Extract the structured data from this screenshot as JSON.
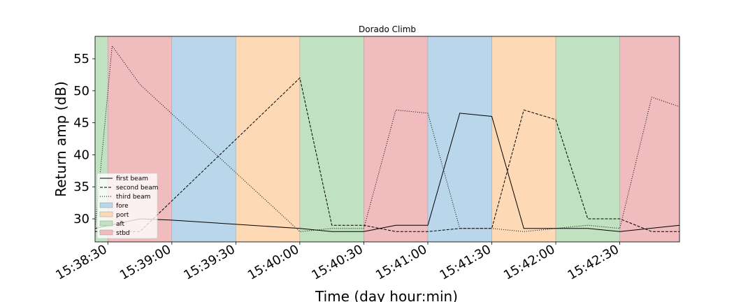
{
  "chart_data": {
    "type": "line",
    "title": "Dorado Climb",
    "xlabel": "Time (day hour:min)",
    "ylabel": "Return amp (dB)",
    "xlim": [
      "15:38:24",
      "15:42:58"
    ],
    "ylim": [
      26.4,
      58.5
    ],
    "yticks": [
      30,
      35,
      40,
      45,
      50,
      55
    ],
    "xticks": [
      "15:38:30",
      "15:39:00",
      "15:39:30",
      "15:40:00",
      "15:40:30",
      "15:41:00",
      "15:41:30",
      "15:42:00",
      "15:42:30"
    ],
    "grid": false,
    "legend_position": "lower-left",
    "beam_colors": {
      "fore": "#bad6ea",
      "port": "#fed9b5",
      "aft": "#c0e2c0",
      "stbd": "#f0bcbd"
    },
    "segments": [
      {
        "beam": "aft",
        "start": "15:38:24",
        "end": "15:38:30"
      },
      {
        "beam": "stbd",
        "start": "15:38:30",
        "end": "15:39:00"
      },
      {
        "beam": "fore",
        "start": "15:39:00",
        "end": "15:39:30"
      },
      {
        "beam": "port",
        "start": "15:39:30",
        "end": "15:40:00"
      },
      {
        "beam": "aft",
        "start": "15:40:00",
        "end": "15:40:30"
      },
      {
        "beam": "stbd",
        "start": "15:40:30",
        "end": "15:41:00"
      },
      {
        "beam": "fore",
        "start": "15:41:00",
        "end": "15:41:30"
      },
      {
        "beam": "port",
        "start": "15:41:30",
        "end": "15:42:00"
      },
      {
        "beam": "aft",
        "start": "15:42:00",
        "end": "15:42:30"
      },
      {
        "beam": "stbd",
        "start": "15:42:30",
        "end": "15:42:58"
      }
    ],
    "series": [
      {
        "name": "first beam",
        "style": "solid",
        "x": [
          "15:38:24",
          "15:38:45",
          "15:39:00",
          "15:40:00",
          "15:40:15",
          "15:40:30",
          "15:40:45",
          "15:41:00",
          "15:41:15",
          "15:41:30",
          "15:41:45",
          "15:42:00",
          "15:42:15",
          "15:42:30",
          "15:42:58"
        ],
        "y": [
          28.5,
          30,
          29.8,
          28.5,
          28,
          28,
          29,
          29,
          46.5,
          46,
          28.5,
          28.5,
          28.5,
          28,
          29
        ]
      },
      {
        "name": "second beam",
        "style": "dashed",
        "x": [
          "15:38:24",
          "15:38:30",
          "15:38:45",
          "15:40:00",
          "15:40:15",
          "15:40:30",
          "15:40:45",
          "15:41:00",
          "15:41:15",
          "15:41:30",
          "15:41:45",
          "15:42:00",
          "15:42:15",
          "15:42:30",
          "15:42:45",
          "15:42:58"
        ],
        "y": [
          28,
          28,
          28,
          52,
          29,
          29,
          28,
          28,
          28.5,
          28.5,
          47,
          45.5,
          30,
          30,
          28,
          28
        ]
      },
      {
        "name": "third beam",
        "style": "dotted",
        "x": [
          "15:38:24",
          "15:38:32",
          "15:38:45",
          "15:40:00",
          "15:40:15",
          "15:40:30",
          "15:40:45",
          "15:41:00",
          "15:41:15",
          "15:41:30",
          "15:41:45",
          "15:42:00",
          "15:42:15",
          "15:42:30",
          "15:42:45",
          "15:42:58"
        ],
        "y": [
          28.5,
          57,
          51,
          28,
          28.5,
          28.5,
          47,
          46.5,
          28.5,
          28.5,
          28,
          28.5,
          29,
          28.5,
          49,
          47.5
        ]
      }
    ],
    "legend": [
      {
        "label": "first beam",
        "kind": "line",
        "style": "solid"
      },
      {
        "label": "second beam",
        "kind": "line",
        "style": "dashed"
      },
      {
        "label": "third beam",
        "kind": "line",
        "style": "dotted"
      },
      {
        "label": "fore",
        "kind": "patch",
        "beam": "fore"
      },
      {
        "label": "port",
        "kind": "patch",
        "beam": "port"
      },
      {
        "label": "aft",
        "kind": "patch",
        "beam": "aft"
      },
      {
        "label": "stbd",
        "kind": "patch",
        "beam": "stbd"
      }
    ]
  }
}
